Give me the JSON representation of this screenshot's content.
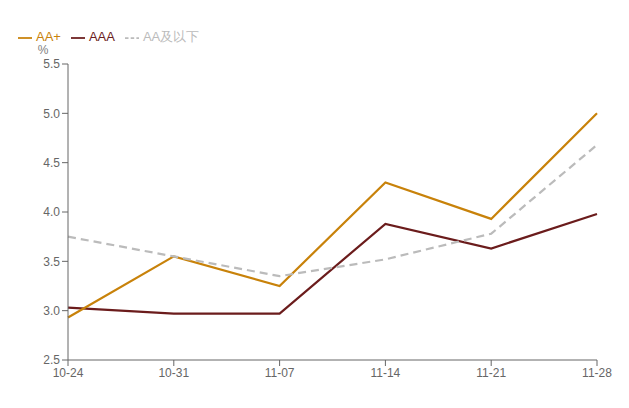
{
  "chart_data": {
    "type": "line",
    "ylabel": "%",
    "categories": [
      "10-24",
      "10-31",
      "11-07",
      "11-14",
      "11-21",
      "11-28"
    ],
    "series": [
      {
        "name": "AAA",
        "color": "#6B1C1C",
        "values": [
          3.03,
          2.97,
          2.97,
          3.88,
          3.63,
          3.98
        ],
        "line_style": "solid"
      },
      {
        "name": "AA+",
        "color": "#C8820A",
        "values": [
          2.93,
          3.55,
          3.25,
          4.3,
          3.93,
          5.0
        ],
        "line_style": "solid"
      },
      {
        "name": "AA及以下",
        "color": "#BBBBBB",
        "values": [
          3.75,
          3.55,
          3.35,
          3.52,
          3.78,
          4.68
        ],
        "line_style": "dashed"
      }
    ],
    "ylim": [
      2.5,
      5.5
    ],
    "yticks": [
      2.5,
      {
        "value": 3.0,
        "label": "3.0"
      },
      3.5,
      {
        "value": 4.0,
        "label": "4.0"
      },
      4.5,
      {
        "value": 5.0,
        "label": "5.0"
      },
      5.5
    ],
    "grid": false,
    "legend": "upper left"
  }
}
